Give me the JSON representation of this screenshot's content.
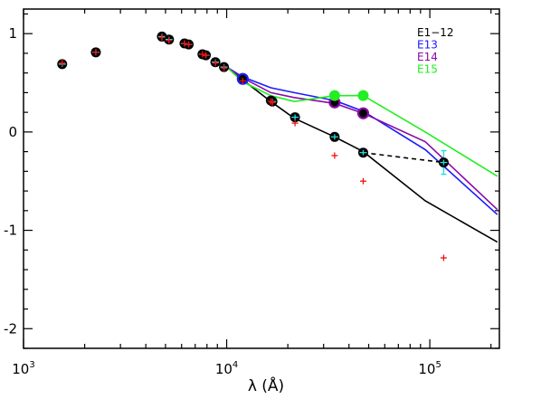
{
  "chart_data": {
    "type": "line",
    "xscale": "log",
    "xlabel": "λ (Å)",
    "ylabel": "",
    "xlim": [
      1000,
      220000
    ],
    "ylim": [
      -2.2,
      1.25
    ],
    "x_ticks": [
      {
        "value": 1000,
        "base": "10",
        "exp": "3"
      },
      {
        "value": 10000,
        "base": "10",
        "exp": "4"
      },
      {
        "value": 100000,
        "base": "10",
        "exp": "5"
      }
    ],
    "y_ticks": [
      {
        "value": 1,
        "label": "1"
      },
      {
        "value": 0,
        "label": "0"
      },
      {
        "value": -1,
        "label": "-1"
      },
      {
        "value": -2,
        "label": "-2"
      }
    ],
    "legend_position": "top-right",
    "legend": [
      {
        "label": "E1−12",
        "color": "#000000"
      },
      {
        "label": "E13",
        "color": "#1a1aff"
      },
      {
        "label": "E14",
        "color": "#8a0aa8"
      },
      {
        "label": "E15",
        "color": "#22ee22"
      }
    ],
    "series": [
      {
        "name": "E1−12",
        "color": "#000000",
        "style": "solid",
        "x": [
          10000,
          12000,
          16500,
          21500,
          34000,
          47000,
          95000,
          215000
        ],
        "y": [
          0.66,
          0.53,
          0.31,
          0.14,
          -0.05,
          -0.2,
          -0.7,
          -1.12
        ]
      },
      {
        "name": "E13",
        "color": "#1a1aff",
        "style": "solid",
        "x": [
          10000,
          12000,
          16500,
          21500,
          34000,
          47000,
          95000,
          215000
        ],
        "y": [
          0.66,
          0.56,
          0.45,
          0.4,
          0.32,
          0.21,
          -0.18,
          -0.84
        ]
      },
      {
        "name": "E14",
        "color": "#8a0aa8",
        "style": "solid",
        "x": [
          10000,
          12000,
          16500,
          21500,
          34000,
          47000,
          95000,
          215000
        ],
        "y": [
          0.66,
          0.55,
          0.4,
          0.35,
          0.29,
          0.19,
          -0.1,
          -0.79
        ]
      },
      {
        "name": "E15",
        "color": "#22ee22",
        "style": "solid",
        "x": [
          10000,
          12000,
          16500,
          21500,
          34000,
          47000,
          95000,
          215000
        ],
        "y": [
          0.66,
          0.51,
          0.37,
          0.31,
          0.37,
          0.37,
          0.0,
          -0.45
        ]
      },
      {
        "name": "",
        "color": "#000000",
        "style": "dashed",
        "x": [
          47000,
          117000
        ],
        "y": [
          -0.21,
          -0.31
        ]
      }
    ],
    "observed_points": {
      "marker": "black filled circle with cyan cross",
      "x": [
        1550,
        2270,
        4800,
        5200,
        6200,
        6500,
        7600,
        7900,
        8800,
        9700,
        12000,
        16500,
        16800,
        21700,
        34000,
        47000,
        117000
      ],
      "y": [
        0.69,
        0.81,
        0.97,
        0.94,
        0.9,
        0.89,
        0.79,
        0.78,
        0.71,
        0.66,
        0.54,
        0.32,
        0.31,
        0.15,
        -0.05,
        -0.21,
        -0.31
      ],
      "yerr": [
        0,
        0,
        0,
        0,
        0,
        0,
        0,
        0,
        0,
        0,
        0,
        0,
        0,
        0,
        0,
        0,
        0.12
      ]
    },
    "model_crosses": {
      "marker": "red plus",
      "color": "#ee1111",
      "x": [
        1550,
        2270,
        4800,
        5200,
        6200,
        6500,
        7600,
        7900,
        8800,
        9700,
        12000,
        16500,
        16800,
        21700,
        34000,
        47000,
        117000
      ],
      "y": [
        0.7,
        0.81,
        0.96,
        0.93,
        0.9,
        0.89,
        0.79,
        0.78,
        0.7,
        0.65,
        0.52,
        0.31,
        0.3,
        0.09,
        -0.24,
        -0.5,
        -1.28
      ]
    },
    "series_markers": [
      {
        "series": "E13",
        "color": "#1a1aff",
        "x": [
          12000
        ],
        "y": [
          0.54
        ]
      },
      {
        "series": "E14",
        "color": "#8a0aa8",
        "x": [
          34000,
          47000
        ],
        "y": [
          0.3,
          0.19
        ]
      },
      {
        "series": "E15",
        "color": "#22ee22",
        "x": [
          34000,
          47000
        ],
        "y": [
          0.37,
          0.37
        ]
      }
    ]
  }
}
